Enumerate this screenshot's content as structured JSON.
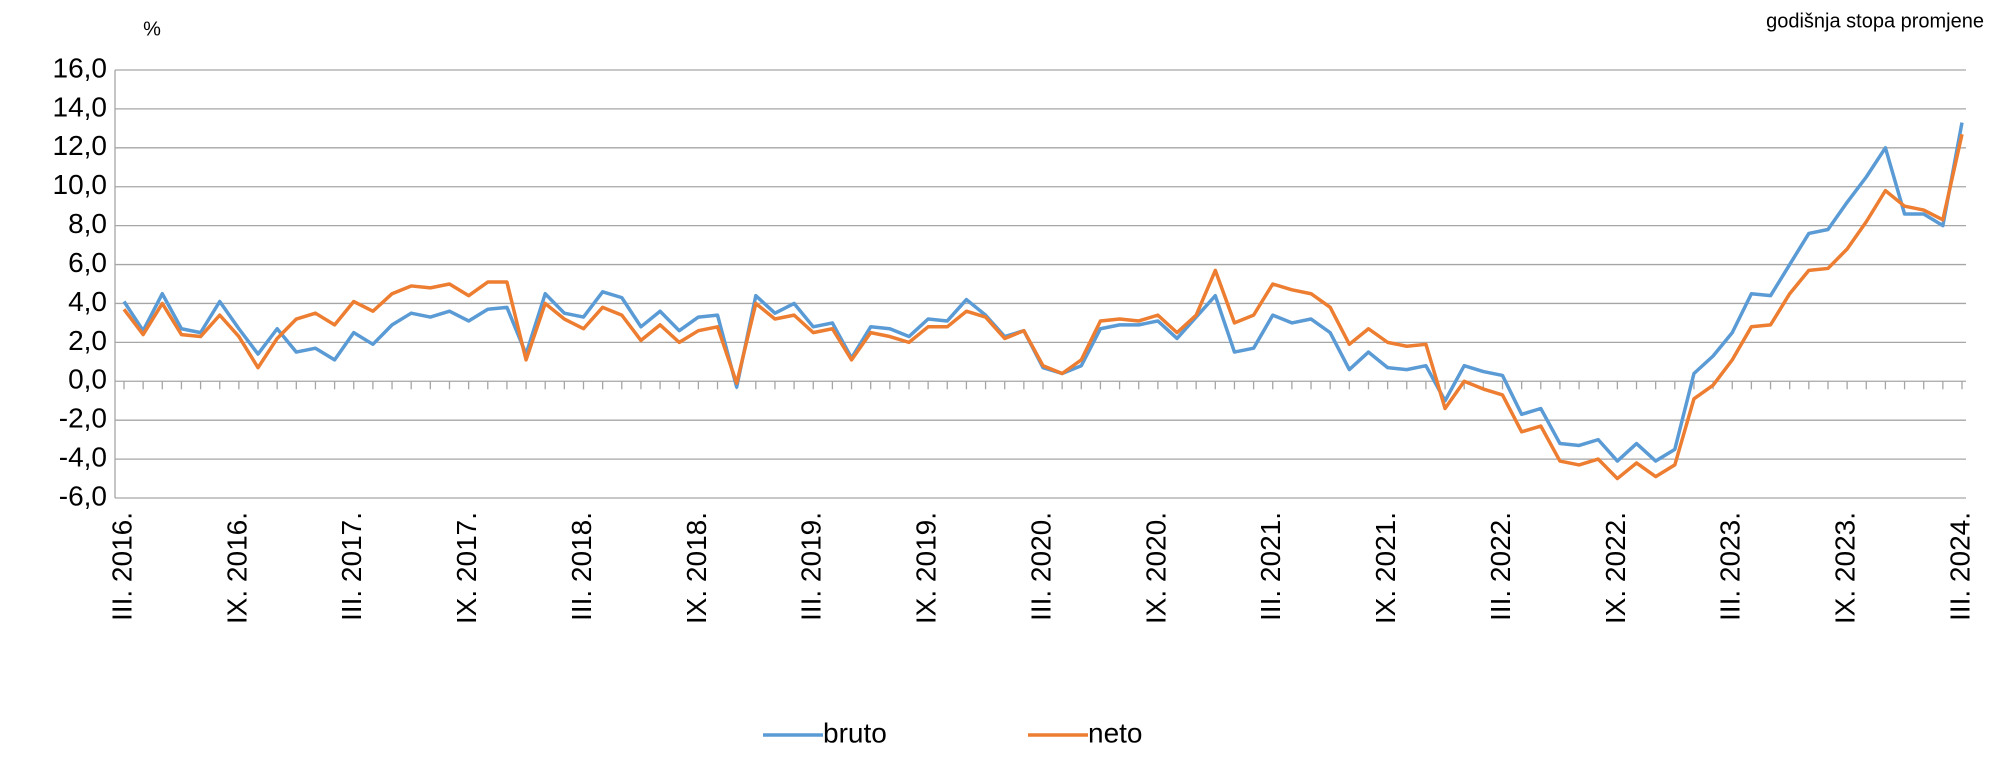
{
  "chart_data": {
    "type": "line",
    "y_unit": "%",
    "subtitle": "godišnja stopa promjene",
    "categories": [
      "III. 2016.",
      null,
      null,
      null,
      null,
      null,
      "IX. 2016.",
      null,
      null,
      null,
      null,
      null,
      "III. 2017.",
      null,
      null,
      null,
      null,
      null,
      "IX. 2017.",
      null,
      null,
      null,
      null,
      null,
      "III. 2018.",
      null,
      null,
      null,
      null,
      null,
      "IX. 2018.",
      null,
      null,
      null,
      null,
      null,
      "III. 2019.",
      null,
      null,
      null,
      null,
      null,
      "IX. 2019.",
      null,
      null,
      null,
      null,
      null,
      "III. 2020.",
      null,
      null,
      null,
      null,
      null,
      "IX. 2020.",
      null,
      null,
      null,
      null,
      null,
      "III. 2021.",
      null,
      null,
      null,
      null,
      null,
      "IX. 2021.",
      null,
      null,
      null,
      null,
      null,
      "III. 2022.",
      null,
      null,
      null,
      null,
      null,
      "IX. 2022.",
      null,
      null,
      null,
      null,
      null,
      "III. 2023.",
      null,
      null,
      null,
      null,
      null,
      "IX. 2023.",
      null,
      null,
      null,
      null,
      null,
      "III. 2024."
    ],
    "series": [
      {
        "name": "bruto",
        "color": "#5b9bd5",
        "values": [
          4.1,
          2.6,
          4.5,
          2.7,
          2.5,
          4.1,
          2.7,
          1.4,
          2.7,
          1.5,
          1.7,
          1.1,
          2.5,
          1.9,
          2.9,
          3.5,
          3.3,
          3.6,
          3.1,
          3.7,
          3.8,
          1.4,
          4.5,
          3.5,
          3.3,
          4.6,
          4.3,
          2.8,
          3.6,
          2.6,
          3.3,
          3.4,
          -0.3,
          4.4,
          3.5,
          4.0,
          2.8,
          3.0,
          1.2,
          2.8,
          2.7,
          2.3,
          3.2,
          3.1,
          4.2,
          3.4,
          2.3,
          2.6,
          0.7,
          0.4,
          0.8,
          2.7,
          2.9,
          2.9,
          3.1,
          2.2,
          3.3,
          4.4,
          1.5,
          1.7,
          3.4,
          3.0,
          3.2,
          2.5,
          0.6,
          1.5,
          0.7,
          0.6,
          0.8,
          -1.0,
          0.8,
          0.5,
          0.3,
          -1.7,
          -1.4,
          -3.2,
          -3.3,
          -3.0,
          -4.1,
          -3.2,
          -4.1,
          -3.5,
          0.4,
          1.3,
          2.5,
          4.5,
          4.4,
          6.0,
          7.6,
          7.8,
          9.2,
          10.5,
          12.0,
          8.6,
          8.6,
          8.0,
          13.3
        ]
      },
      {
        "name": "neto",
        "color": "#ed7d31",
        "values": [
          3.7,
          2.4,
          4.0,
          2.4,
          2.3,
          3.4,
          2.3,
          0.7,
          2.2,
          3.2,
          3.5,
          2.9,
          4.1,
          3.6,
          4.5,
          4.9,
          4.8,
          5.0,
          4.4,
          5.1,
          5.1,
          1.1,
          4.0,
          3.2,
          2.7,
          3.8,
          3.4,
          2.1,
          2.9,
          2.0,
          2.6,
          2.8,
          -0.1,
          4.0,
          3.2,
          3.4,
          2.5,
          2.7,
          1.1,
          2.5,
          2.3,
          2.0,
          2.8,
          2.8,
          3.6,
          3.3,
          2.2,
          2.6,
          0.8,
          0.4,
          1.1,
          3.1,
          3.2,
          3.1,
          3.4,
          2.5,
          3.4,
          5.7,
          3.0,
          3.4,
          5.0,
          4.7,
          4.5,
          3.8,
          1.9,
          2.7,
          2.0,
          1.8,
          1.9,
          -1.4,
          0.0,
          -0.4,
          -0.7,
          -2.6,
          -2.3,
          -4.1,
          -4.3,
          -4.0,
          -5.0,
          -4.2,
          -4.9,
          -4.3,
          -0.9,
          -0.2,
          1.1,
          2.8,
          2.9,
          4.5,
          5.7,
          5.8,
          6.8,
          8.2,
          9.8,
          9.0,
          8.8,
          8.3,
          12.7
        ]
      }
    ],
    "ylim": [
      -6,
      16
    ],
    "yticks": [
      {
        "value": -6,
        "label": "-6,0"
      },
      {
        "value": -4,
        "label": "-4,0"
      },
      {
        "value": -2,
        "label": "-2,0"
      },
      {
        "value": 0,
        "label": "0,0"
      },
      {
        "value": 2,
        "label": "2,0"
      },
      {
        "value": 4,
        "label": "4,0"
      },
      {
        "value": 6,
        "label": "6,0"
      },
      {
        "value": 8,
        "label": "8,0"
      },
      {
        "value": 10,
        "label": "10,0"
      },
      {
        "value": 12,
        "label": "12,0"
      },
      {
        "value": 14,
        "label": "14,0"
      },
      {
        "value": 16,
        "label": "16,0"
      }
    ],
    "grid": true,
    "legend": "bottom"
  }
}
